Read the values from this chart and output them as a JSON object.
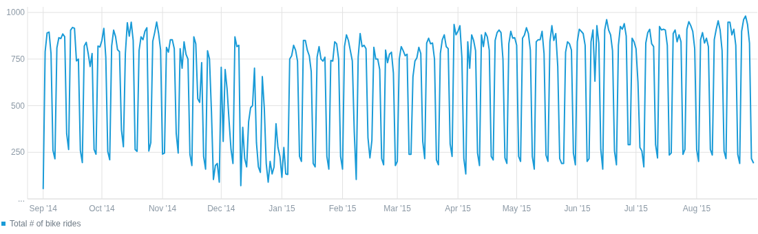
{
  "chart_data": {
    "type": "line",
    "xlim": [
      "2014-08-24",
      "2015-09-01"
    ],
    "xticks": [
      {
        "value": "2014-09-01",
        "label": "Sep '14"
      },
      {
        "value": "2014-10-01",
        "label": "Oct '14"
      },
      {
        "value": "2014-11-01",
        "label": "Nov '14"
      },
      {
        "value": "2014-12-01",
        "label": "Dec '14"
      },
      {
        "value": "2015-01-01",
        "label": "Jan '15"
      },
      {
        "value": "2015-02-01",
        "label": "Feb '15"
      },
      {
        "value": "2015-03-01",
        "label": "Mar '15"
      },
      {
        "value": "2015-04-01",
        "label": "Apr '15"
      },
      {
        "value": "2015-05-01",
        "label": "May '15"
      },
      {
        "value": "2015-06-01",
        "label": "Jun '15"
      },
      {
        "value": "2015-07-01",
        "label": "Jul '15"
      },
      {
        "value": "2015-08-01",
        "label": "Aug '15"
      }
    ],
    "ylim": [
      0,
      1030
    ],
    "yticks": [
      {
        "value": 0,
        "label": "..."
      },
      250,
      500,
      750,
      1000
    ],
    "grid": true,
    "legend": "bottom left",
    "marker": "none",
    "line_style": "solid",
    "x": [
      "2014-09-01",
      "2014-09-02",
      "2014-09-03",
      "2014-09-04",
      "2014-09-05",
      "2014-09-06",
      "2014-09-07",
      "2014-09-08",
      "2014-09-09",
      "2014-09-10",
      "2014-09-11",
      "2014-09-12",
      "2014-09-13",
      "2014-09-14",
      "2014-09-15",
      "2014-09-16",
      "2014-09-17",
      "2014-09-18",
      "2014-09-19",
      "2014-09-20",
      "2014-09-21",
      "2014-09-22",
      "2014-09-23",
      "2014-09-24",
      "2014-09-25",
      "2014-09-26",
      "2014-09-27",
      "2014-09-28",
      "2014-09-29",
      "2014-09-30",
      "2014-10-01",
      "2014-10-02",
      "2014-10-03",
      "2014-10-04",
      "2014-10-05",
      "2014-10-06",
      "2014-10-07",
      "2014-10-08",
      "2014-10-09",
      "2014-10-10",
      "2014-10-11",
      "2014-10-12",
      "2014-10-13",
      "2014-10-14",
      "2014-10-15",
      "2014-10-16",
      "2014-10-17",
      "2014-10-18",
      "2014-10-19",
      "2014-10-20",
      "2014-10-21",
      "2014-10-22",
      "2014-10-23",
      "2014-10-24",
      "2014-10-25",
      "2014-10-26",
      "2014-10-27",
      "2014-10-28",
      "2014-10-29",
      "2014-10-30",
      "2014-10-31",
      "2014-11-01",
      "2014-11-02",
      "2014-11-03",
      "2014-11-04",
      "2014-11-05",
      "2014-11-06",
      "2014-11-07",
      "2014-11-08",
      "2014-11-09",
      "2014-11-10",
      "2014-11-11",
      "2014-11-12",
      "2014-11-13",
      "2014-11-14",
      "2014-11-15",
      "2014-11-16",
      "2014-11-17",
      "2014-11-18",
      "2014-11-19",
      "2014-11-20",
      "2014-11-21",
      "2014-11-22",
      "2014-11-23",
      "2014-11-24",
      "2014-11-25",
      "2014-11-26",
      "2014-11-27",
      "2014-11-28",
      "2014-11-29",
      "2014-11-30",
      "2014-12-01",
      "2014-12-02",
      "2014-12-03",
      "2014-12-04",
      "2014-12-05",
      "2014-12-06",
      "2014-12-07",
      "2014-12-08",
      "2014-12-09",
      "2014-12-10",
      "2014-12-11",
      "2014-12-12",
      "2014-12-13",
      "2014-12-14",
      "2014-12-15",
      "2014-12-16",
      "2014-12-17",
      "2014-12-18",
      "2014-12-19",
      "2014-12-20",
      "2014-12-21",
      "2014-12-22",
      "2014-12-23",
      "2014-12-24",
      "2014-12-25",
      "2014-12-26",
      "2014-12-27",
      "2014-12-28",
      "2014-12-29",
      "2014-12-30",
      "2014-12-31",
      "2015-01-01",
      "2015-01-02",
      "2015-01-03",
      "2015-01-04",
      "2015-01-05",
      "2015-01-06",
      "2015-01-07",
      "2015-01-08",
      "2015-01-09",
      "2015-01-10",
      "2015-01-11",
      "2015-01-12",
      "2015-01-13",
      "2015-01-14",
      "2015-01-15",
      "2015-01-16",
      "2015-01-17",
      "2015-01-18",
      "2015-01-19",
      "2015-01-20",
      "2015-01-21",
      "2015-01-22",
      "2015-01-23",
      "2015-01-24",
      "2015-01-25",
      "2015-01-26",
      "2015-01-27",
      "2015-01-28",
      "2015-01-29",
      "2015-01-30",
      "2015-01-31",
      "2015-02-01",
      "2015-02-02",
      "2015-02-03",
      "2015-02-04",
      "2015-02-05",
      "2015-02-06",
      "2015-02-07",
      "2015-02-08",
      "2015-02-09",
      "2015-02-10",
      "2015-02-11",
      "2015-02-12",
      "2015-02-13",
      "2015-02-14",
      "2015-02-15",
      "2015-02-16",
      "2015-02-17",
      "2015-02-18",
      "2015-02-19",
      "2015-02-20",
      "2015-02-21",
      "2015-02-22",
      "2015-02-23",
      "2015-02-24",
      "2015-02-25",
      "2015-02-26",
      "2015-02-27",
      "2015-02-28",
      "2015-03-01",
      "2015-03-02",
      "2015-03-03",
      "2015-03-04",
      "2015-03-05",
      "2015-03-06",
      "2015-03-07",
      "2015-03-08",
      "2015-03-09",
      "2015-03-10",
      "2015-03-11",
      "2015-03-12",
      "2015-03-13",
      "2015-03-14",
      "2015-03-15",
      "2015-03-16",
      "2015-03-17",
      "2015-03-18",
      "2015-03-19",
      "2015-03-20",
      "2015-03-21",
      "2015-03-22",
      "2015-03-23",
      "2015-03-24",
      "2015-03-25",
      "2015-03-26",
      "2015-03-27",
      "2015-03-28",
      "2015-03-29",
      "2015-03-30",
      "2015-03-31",
      "2015-04-01",
      "2015-04-02",
      "2015-04-03",
      "2015-04-04",
      "2015-04-05",
      "2015-04-06",
      "2015-04-07",
      "2015-04-08",
      "2015-04-09",
      "2015-04-10",
      "2015-04-11",
      "2015-04-12",
      "2015-04-13",
      "2015-04-14",
      "2015-04-15",
      "2015-04-16",
      "2015-04-17",
      "2015-04-18",
      "2015-04-19",
      "2015-04-20",
      "2015-04-21",
      "2015-04-22",
      "2015-04-23",
      "2015-04-24",
      "2015-04-25",
      "2015-04-26",
      "2015-04-27",
      "2015-04-28",
      "2015-04-29",
      "2015-04-30",
      "2015-05-01",
      "2015-05-02",
      "2015-05-03",
      "2015-05-04",
      "2015-05-05",
      "2015-05-06",
      "2015-05-07",
      "2015-05-08",
      "2015-05-09",
      "2015-05-10",
      "2015-05-11",
      "2015-05-12",
      "2015-05-13",
      "2015-05-14",
      "2015-05-15",
      "2015-05-16",
      "2015-05-17",
      "2015-05-18",
      "2015-05-19",
      "2015-05-20",
      "2015-05-21",
      "2015-05-22",
      "2015-05-23",
      "2015-05-24",
      "2015-05-25",
      "2015-05-26",
      "2015-05-27",
      "2015-05-28",
      "2015-05-29",
      "2015-05-30",
      "2015-05-31",
      "2015-06-01",
      "2015-06-02",
      "2015-06-03",
      "2015-06-04",
      "2015-06-05",
      "2015-06-06",
      "2015-06-07",
      "2015-06-08",
      "2015-06-09",
      "2015-06-10",
      "2015-06-11",
      "2015-06-12",
      "2015-06-13",
      "2015-06-14",
      "2015-06-15",
      "2015-06-16",
      "2015-06-17",
      "2015-06-18",
      "2015-06-19",
      "2015-06-20",
      "2015-06-21",
      "2015-06-22",
      "2015-06-23",
      "2015-06-24",
      "2015-06-25",
      "2015-06-26",
      "2015-06-27",
      "2015-06-28",
      "2015-06-29",
      "2015-06-30",
      "2015-07-01",
      "2015-07-02",
      "2015-07-03",
      "2015-07-04",
      "2015-07-05",
      "2015-07-06",
      "2015-07-07",
      "2015-07-08",
      "2015-07-09",
      "2015-07-10",
      "2015-07-11",
      "2015-07-12",
      "2015-07-13",
      "2015-07-14",
      "2015-07-15",
      "2015-07-16",
      "2015-07-17",
      "2015-07-18",
      "2015-07-19",
      "2015-07-20",
      "2015-07-21",
      "2015-07-22",
      "2015-07-23",
      "2015-07-24",
      "2015-07-25",
      "2015-07-26",
      "2015-07-27",
      "2015-07-28",
      "2015-07-29",
      "2015-07-30",
      "2015-07-31",
      "2015-08-01",
      "2015-08-02",
      "2015-08-03",
      "2015-08-04",
      "2015-08-05",
      "2015-08-06",
      "2015-08-07",
      "2015-08-08",
      "2015-08-09",
      "2015-08-10",
      "2015-08-11",
      "2015-08-12",
      "2015-08-13",
      "2015-08-14",
      "2015-08-15",
      "2015-08-16",
      "2015-08-17",
      "2015-08-18",
      "2015-08-19",
      "2015-08-20",
      "2015-08-21",
      "2015-08-22",
      "2015-08-23",
      "2015-08-24",
      "2015-08-25",
      "2015-08-26",
      "2015-08-27",
      "2015-08-28",
      "2015-08-29",
      "2015-08-30"
    ],
    "series": [
      {
        "name": "Total # of bike rides",
        "color": "#1a9bd7",
        "values": [
          55,
          790,
          890,
          895,
          780,
          260,
          215,
          810,
          865,
          860,
          885,
          870,
          350,
          265,
          905,
          920,
          915,
          740,
          750,
          260,
          195,
          820,
          840,
          780,
          710,
          780,
          265,
          240,
          820,
          815,
          850,
          915,
          760,
          255,
          210,
          820,
          905,
          870,
          800,
          790,
          370,
          280,
          780,
          945,
          873,
          948,
          850,
          265,
          255,
          795,
          869,
          854,
          899,
          918,
          257,
          302,
          845,
          893,
          949,
          887,
          800,
          240,
          246,
          813,
          787,
          854,
          854,
          806,
          351,
          246,
          806,
          701,
          843,
          776,
          750,
          239,
          179,
          869,
          832,
          537,
          518,
          731,
          228,
          160,
          795,
          750,
          470,
          104,
          179,
          190,
          90,
          706,
          308,
          694,
          589,
          420,
          265,
          190,
          869,
          817,
          824,
          71,
          384,
          216,
          172,
          414,
          489,
          500,
          701,
          302,
          172,
          142,
          656,
          489,
          190,
          90,
          201,
          134,
          172,
          403,
          276,
          228,
          116,
          276,
          134,
          131,
          750,
          768,
          824,
          798,
          739,
          228,
          201,
          850,
          850,
          798,
          768,
          683,
          190,
          172,
          761,
          817,
          750,
          739,
          760,
          228,
          160,
          742,
          739,
          843,
          832,
          750,
          228,
          160,
          817,
          880,
          850,
          795,
          740,
          358,
          104,
          761,
          887,
          817,
          824,
          806,
          328,
          220,
          313,
          813,
          750,
          750,
          694,
          216,
          183,
          798,
          731,
          776,
          787,
          675,
          179,
          201,
          750,
          817,
          795,
          768,
          776,
          239,
          239,
          656,
          739,
          757,
          813,
          780,
          308,
          216,
          836,
          862,
          832,
          836,
          750,
          209,
          183,
          780,
          854,
          880,
          817,
          806,
          295,
          228,
          936,
          880,
          899,
          929,
          757,
          216,
          134,
          843,
          701,
          880,
          850,
          795,
          246,
          179,
          880,
          817,
          892,
          869,
          798,
          228,
          209,
          850,
          892,
          906,
          892,
          750,
          220,
          190,
          832,
          899,
          862,
          865,
          824,
          228,
          201,
          862,
          880,
          918,
          887,
          798,
          228,
          160,
          843,
          854,
          854,
          899,
          780,
          235,
          201,
          843,
          929,
          850,
          887,
          712,
          216,
          190,
          190,
          787,
          843,
          832,
          798,
          246,
          183,
          843,
          910,
          899,
          887,
          824,
          201,
          216,
          843,
          906,
          631,
          929,
          836,
          265,
          160,
          906,
          962,
          906,
          880,
          795,
          257,
          183,
          824,
          925,
          910,
          940,
          873,
          291,
          291,
          862,
          843,
          806,
          627,
          276,
          257,
          172,
          836,
          892,
          910,
          832,
          817,
          291,
          220,
          925,
          906,
          910,
          906,
          824,
          235,
          246,
          887,
          906,
          843,
          880,
          843,
          239,
          265,
          910,
          951,
          929,
          899,
          806,
          265,
          201,
          854,
          892,
          836,
          862,
          817,
          265,
          235,
          854,
          910,
          955,
          906,
          795,
          257,
          216,
          948,
          948,
          880,
          910,
          824,
          239,
          190,
          899,
          962,
          981,
          936,
          836,
          216,
          194
        ]
      }
    ]
  }
}
